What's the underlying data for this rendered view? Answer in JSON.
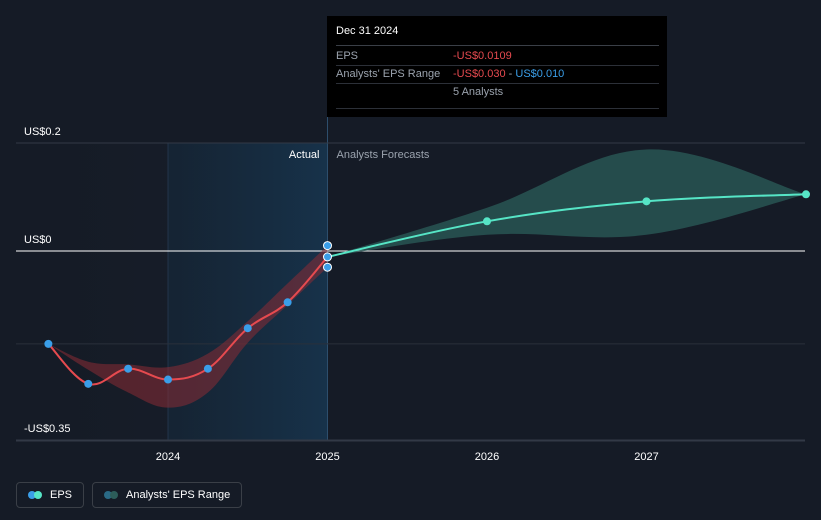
{
  "chart_data": {
    "type": "line",
    "y_axis": {
      "ticks": [
        {
          "value": 0.2,
          "label": "US$0.2"
        },
        {
          "value": 0,
          "label": "US$0"
        },
        {
          "value": -0.35,
          "label": "-US$0.35"
        }
      ],
      "ylim": [
        -0.35,
        0.2
      ]
    },
    "x_axis": {
      "ticks": [
        {
          "value": 2024.0,
          "label": "2024"
        },
        {
          "value": 2025.0,
          "label": "2025"
        },
        {
          "value": 2026.0,
          "label": "2026"
        },
        {
          "value": 2027.0,
          "label": "2027"
        }
      ],
      "xlim": [
        2022.9,
        2028.0
      ]
    },
    "sections": {
      "actual_label": "Actual",
      "forecast_label": "Analysts Forecasts",
      "divider_x": 2025.0,
      "highlight_start_x": 2024.0
    },
    "series": [
      {
        "name": "EPS",
        "color": "#e64a4f",
        "points": [
          {
            "x": 2023.25,
            "y": -0.172
          },
          {
            "x": 2023.5,
            "y": -0.246
          },
          {
            "x": 2023.75,
            "y": -0.218
          },
          {
            "x": 2024.0,
            "y": -0.238
          },
          {
            "x": 2024.25,
            "y": -0.218
          },
          {
            "x": 2024.5,
            "y": -0.143
          },
          {
            "x": 2024.75,
            "y": -0.095
          },
          {
            "x": 2025.0,
            "y": -0.0109
          }
        ],
        "range_low": [
          -0.172,
          -0.22,
          -0.262,
          -0.29,
          -0.262,
          -0.17,
          -0.1,
          -0.03
        ],
        "range_high": [
          -0.172,
          -0.205,
          -0.21,
          -0.215,
          -0.19,
          -0.13,
          -0.06,
          0.01
        ]
      },
      {
        "name": "Analysts Forecast",
        "color": "#56e5c6",
        "points": [
          {
            "x": 2025.0,
            "y": -0.0109
          },
          {
            "x": 2026.0,
            "y": 0.055
          },
          {
            "x": 2027.0,
            "y": 0.092
          },
          {
            "x": 2028.0,
            "y": 0.105
          }
        ],
        "range_low": [
          -0.0109,
          0.03,
          0.03,
          0.105
        ],
        "range_high": [
          -0.0109,
          0.08,
          0.188,
          0.105
        ]
      }
    ],
    "markers_at_2025": [
      0.01,
      -0.0109,
      -0.03
    ]
  },
  "tooltip": {
    "date": "Dec 31 2024",
    "eps_label": "EPS",
    "eps_value": "-US$0.0109",
    "range_label": "Analysts' EPS Range",
    "range_low": "-US$0.030",
    "range_sep": " - ",
    "range_high": "US$0.010",
    "analysts": "5 Analysts"
  },
  "legend": {
    "eps_label": "EPS",
    "range_label": "Analysts' EPS Range",
    "eps_colors": [
      "#3a9ee8",
      "#56e5c6"
    ],
    "range_colors": [
      "#2a6a86",
      "#2d5d5a"
    ]
  }
}
